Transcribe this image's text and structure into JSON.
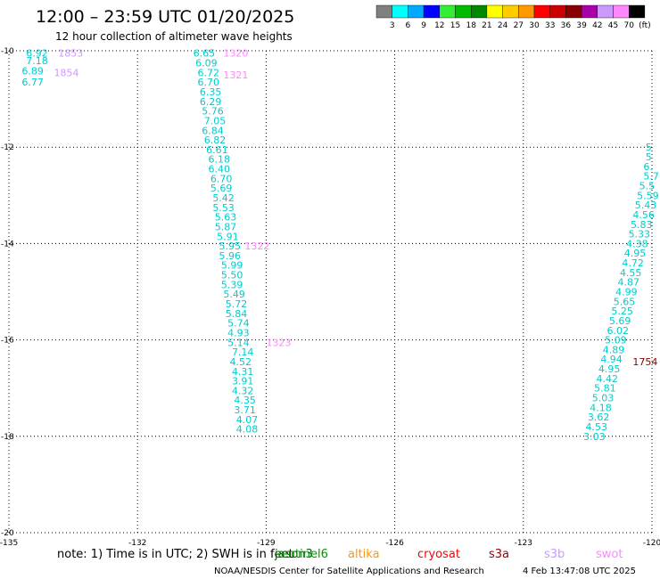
{
  "title": "12:00 – 23:59 UTC 01/20/2025",
  "subtitle": "12 hour collection of altimeter wave heights",
  "note": "note: 1) Time is in UTC; 2) SWH is in feet",
  "footer": {
    "credit": "NOAA/NESDIS Center for Satellite Applications and Research",
    "timestamp": "4 Feb 13:47:08 UTC 2025"
  },
  "colorbar": {
    "colors": [
      "#808080",
      "#00ffff",
      "#00aaff",
      "#0000ff",
      "#33ee33",
      "#00bb00",
      "#008800",
      "#ffff00",
      "#ffcc00",
      "#ff9900",
      "#ff0000",
      "#cc0000",
      "#880000",
      "#aa00aa",
      "#cc99ff",
      "#ff88ff",
      "#000000"
    ],
    "labels": [
      "3",
      "6",
      "9",
      "12",
      "15",
      "18",
      "21",
      "24",
      "27",
      "30",
      "33",
      "36",
      "39",
      "42",
      "45",
      "70",
      "(ft)"
    ]
  },
  "satellites": [
    {
      "name": "jason3",
      "color": "#006600"
    },
    {
      "name": "sentinel6",
      "color": "#009900"
    },
    {
      "name": "altika",
      "color": "#ff9900"
    },
    {
      "name": "cryosat",
      "color": "#ff0000"
    },
    {
      "name": "s3a",
      "color": "#990000"
    },
    {
      "name": "s3b",
      "color": "#cc99ff"
    },
    {
      "name": "swot",
      "color": "#ff88ff"
    }
  ],
  "chart_data": {
    "type": "scatter",
    "xlim": [
      -135,
      -120
    ],
    "ylim": [
      -20,
      -10
    ],
    "xticks": [
      -135,
      -132,
      -129,
      -126,
      -123,
      -120
    ],
    "yticks": [
      -10,
      -12,
      -14,
      -16,
      -18,
      -20
    ],
    "xtick_labels": [
      "-135",
      "-132",
      "-129",
      "-126",
      "-123",
      "-120"
    ],
    "ytick_labels": [
      "-10",
      "-12",
      "-14",
      "-16",
      "-18",
      "-20"
    ],
    "grid": true,
    "tracks": [
      {
        "color": "#00cccc",
        "points": [
          {
            "x": -134.6,
            "y": -10.05,
            "v": "6.92"
          },
          {
            "x": -134.6,
            "y": -10.2,
            "v": "7.18"
          },
          {
            "x": -134.7,
            "y": -10.42,
            "v": "6.89"
          },
          {
            "x": -134.7,
            "y": -10.65,
            "v": "6.77"
          }
        ]
      },
      {
        "color": "#00cccc",
        "points": [
          {
            "x": -130.7,
            "y": -10.05,
            "v": "6.65"
          },
          {
            "x": -130.65,
            "y": -10.25,
            "v": "6.09"
          },
          {
            "x": -130.6,
            "y": -10.45,
            "v": "6.72"
          },
          {
            "x": -130.6,
            "y": -10.65,
            "v": "6.70"
          },
          {
            "x": -130.55,
            "y": -10.85,
            "v": "6.35"
          },
          {
            "x": -130.55,
            "y": -11.05,
            "v": "6.29"
          },
          {
            "x": -130.5,
            "y": -11.25,
            "v": "5.76"
          },
          {
            "x": -130.45,
            "y": -11.45,
            "v": "7.05"
          },
          {
            "x": -130.5,
            "y": -11.65,
            "v": "6.84"
          },
          {
            "x": -130.45,
            "y": -11.85,
            "v": "6.82"
          },
          {
            "x": -130.4,
            "y": -12.05,
            "v": "6.61"
          },
          {
            "x": -130.35,
            "y": -12.25,
            "v": "6.18"
          },
          {
            "x": -130.35,
            "y": -12.45,
            "v": "6.40"
          },
          {
            "x": -130.3,
            "y": -12.65,
            "v": "6.70"
          },
          {
            "x": -130.3,
            "y": -12.85,
            "v": "5.69"
          },
          {
            "x": -130.25,
            "y": -13.05,
            "v": "5.42"
          },
          {
            "x": -130.25,
            "y": -13.25,
            "v": "5.53"
          },
          {
            "x": -130.2,
            "y": -13.45,
            "v": "5.63"
          },
          {
            "x": -130.2,
            "y": -13.65,
            "v": "5.87"
          },
          {
            "x": -130.15,
            "y": -13.85,
            "v": "5.91"
          },
          {
            "x": -130.1,
            "y": -14.05,
            "v": "5.95"
          },
          {
            "x": -130.1,
            "y": -14.25,
            "v": "5.96"
          },
          {
            "x": -130.05,
            "y": -14.45,
            "v": "5.99"
          },
          {
            "x": -130.05,
            "y": -14.65,
            "v": "5.50"
          },
          {
            "x": -130.05,
            "y": -14.85,
            "v": "5.39"
          },
          {
            "x": -130.0,
            "y": -15.05,
            "v": "5.49"
          },
          {
            "x": -129.95,
            "y": -15.25,
            "v": "5.72"
          },
          {
            "x": -129.95,
            "y": -15.45,
            "v": "5.84"
          },
          {
            "x": -129.9,
            "y": -15.65,
            "v": "5.74"
          },
          {
            "x": -129.9,
            "y": -15.85,
            "v": "4.93"
          },
          {
            "x": -129.9,
            "y": -16.05,
            "v": "5.14"
          },
          {
            "x": -129.8,
            "y": -16.25,
            "v": "7.14"
          },
          {
            "x": -129.85,
            "y": -16.45,
            "v": "4.52"
          },
          {
            "x": -129.8,
            "y": -16.65,
            "v": "4.31"
          },
          {
            "x": -129.8,
            "y": -16.85,
            "v": "3.91"
          },
          {
            "x": -129.8,
            "y": -17.05,
            "v": "4.32"
          },
          {
            "x": -129.75,
            "y": -17.25,
            "v": "4.35"
          },
          {
            "x": -129.75,
            "y": -17.45,
            "v": "3.71"
          },
          {
            "x": -129.7,
            "y": -17.65,
            "v": "4.07"
          },
          {
            "x": -129.7,
            "y": -17.85,
            "v": "4.08"
          }
        ]
      },
      {
        "color": "#00cccc",
        "points": [
          {
            "x": -120.15,
            "y": -12.0,
            "v": "5"
          },
          {
            "x": -120.15,
            "y": -12.2,
            "v": "5"
          },
          {
            "x": -120.2,
            "y": -12.4,
            "v": "6."
          },
          {
            "x": -120.2,
            "y": -12.6,
            "v": "5.7"
          },
          {
            "x": -120.3,
            "y": -12.8,
            "v": "5.5"
          },
          {
            "x": -120.35,
            "y": -13.0,
            "v": "5.59"
          },
          {
            "x": -120.4,
            "y": -13.2,
            "v": "5.43"
          },
          {
            "x": -120.45,
            "y": -13.4,
            "v": "4.56"
          },
          {
            "x": -120.5,
            "y": -13.6,
            "v": "5.83"
          },
          {
            "x": -120.55,
            "y": -13.8,
            "v": "5.33"
          },
          {
            "x": -120.6,
            "y": -14.0,
            "v": "4.38"
          },
          {
            "x": -120.65,
            "y": -14.2,
            "v": "4.95"
          },
          {
            "x": -120.7,
            "y": -14.4,
            "v": "4.72"
          },
          {
            "x": -120.75,
            "y": -14.6,
            "v": "4.55"
          },
          {
            "x": -120.8,
            "y": -14.8,
            "v": "4.87"
          },
          {
            "x": -120.85,
            "y": -15.0,
            "v": "4.99"
          },
          {
            "x": -120.9,
            "y": -15.2,
            "v": "5.65"
          },
          {
            "x": -120.95,
            "y": -15.4,
            "v": "5.25"
          },
          {
            "x": -121.0,
            "y": -15.6,
            "v": "5.69"
          },
          {
            "x": -121.05,
            "y": -15.8,
            "v": "6.02"
          },
          {
            "x": -121.1,
            "y": -16.0,
            "v": "5.09"
          },
          {
            "x": -121.15,
            "y": -16.2,
            "v": "4.89"
          },
          {
            "x": -121.2,
            "y": -16.4,
            "v": "4.94"
          },
          {
            "x": -121.25,
            "y": -16.6,
            "v": "4.95"
          },
          {
            "x": -121.3,
            "y": -16.8,
            "v": "4.42"
          },
          {
            "x": -121.35,
            "y": -17.0,
            "v": "5.81"
          },
          {
            "x": -121.4,
            "y": -17.2,
            "v": "5.03"
          },
          {
            "x": -121.45,
            "y": -17.4,
            "v": "4.18"
          },
          {
            "x": -121.5,
            "y": -17.6,
            "v": "3.62"
          },
          {
            "x": -121.55,
            "y": -17.8,
            "v": "4.53"
          },
          {
            "x": -121.6,
            "y": -18.0,
            "v": "3.03"
          }
        ]
      }
    ],
    "time_labels": [
      {
        "x": -133.85,
        "y": -10.05,
        "v": "1853",
        "color": "#cc99ff"
      },
      {
        "x": -133.95,
        "y": -10.45,
        "v": "1854",
        "color": "#cc99ff"
      },
      {
        "x": -130.0,
        "y": -10.05,
        "v": "1320",
        "color": "#ff88ff"
      },
      {
        "x": -130.0,
        "y": -10.5,
        "v": "1321",
        "color": "#ff88ff"
      },
      {
        "x": -129.5,
        "y": -14.05,
        "v": "1322",
        "color": "#ff88ff"
      },
      {
        "x": -129.0,
        "y": -16.05,
        "v": "1323",
        "color": "#ff88ff"
      },
      {
        "x": -120.45,
        "y": -16.45,
        "v": "1754",
        "color": "#880000"
      }
    ]
  }
}
